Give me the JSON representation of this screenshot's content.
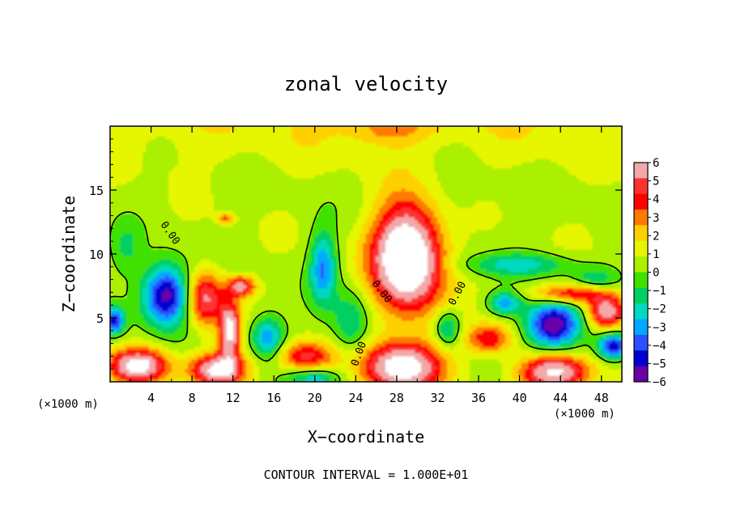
{
  "chart_data": {
    "type": "heatmap",
    "title": "zonal velocity",
    "xlabel": "X−coordinate",
    "ylabel": "Z−coordinate",
    "x_unit_note": "(×1000 m)",
    "z_unit_note": "(×1000 m)",
    "footer": "CONTOUR INTERVAL = 1.000E+01",
    "xlim": [
      0,
      50
    ],
    "ylim": [
      0,
      20
    ],
    "x_ticks": [
      4,
      8,
      12,
      16,
      20,
      24,
      28,
      32,
      36,
      40,
      44,
      48
    ],
    "x_tick_labels": [
      "4",
      "8",
      "12",
      "16",
      "20",
      "24",
      "28",
      "32",
      "36",
      "40",
      "44",
      "48"
    ],
    "y_ticks": [
      5,
      10,
      15
    ],
    "y_tick_labels": [
      "5",
      "10",
      "15"
    ],
    "colorbar": {
      "range": [
        -6,
        6
      ],
      "tick_labels": [
        "6",
        "5",
        "4",
        "3",
        "2",
        "1",
        "0",
        "−1",
        "−2",
        "−3",
        "−4",
        "−5",
        "−6"
      ],
      "colors": [
        "#f2a8a8",
        "#ff3030",
        "#ff0000",
        "#ff7a00",
        "#ffd000",
        "#e6f500",
        "#aaf000",
        "#40e000",
        "#00d060",
        "#00d8c0",
        "#00a8ff",
        "#2a50ff",
        "#0000d0",
        "#6a00a8"
      ]
    },
    "contour_labels": [
      "0.00",
      "0.00",
      "0.00",
      "0.00"
    ],
    "blobs": [
      {
        "x": 5.5,
        "z": 6.8,
        "rx": 2.3,
        "rz": 2.4,
        "v": -6.5
      },
      {
        "x": 0.4,
        "z": 4.8,
        "rx": 1.0,
        "rz": 1.0,
        "v": -5
      },
      {
        "x": 2.7,
        "z": 1.3,
        "rx": 2.8,
        "rz": 1.3,
        "v": 6.5
      },
      {
        "x": 9.3,
        "z": 6.5,
        "rx": 1.8,
        "rz": 2.2,
        "v": 5
      },
      {
        "x": 11.7,
        "z": 4.0,
        "rx": 1.0,
        "rz": 2.2,
        "v": 6.2
      },
      {
        "x": 12.8,
        "z": 7.5,
        "rx": 1.3,
        "rz": 0.8,
        "v": 5
      },
      {
        "x": 11.3,
        "z": 12.8,
        "rx": 0.8,
        "rz": 0.4,
        "v": 3
      },
      {
        "x": 10.5,
        "z": 1.0,
        "rx": 2.7,
        "rz": 1.3,
        "v": 6.5
      },
      {
        "x": 15.4,
        "z": 3.5,
        "rx": 1.6,
        "rz": 1.7,
        "v": -4
      },
      {
        "x": 20.8,
        "z": 9.0,
        "rx": 1.3,
        "rz": 2.8,
        "v": -4
      },
      {
        "x": 19.0,
        "z": 2.0,
        "rx": 2.8,
        "rz": 1.2,
        "v": 4
      },
      {
        "x": 23.5,
        "z": 4.6,
        "rx": 1.8,
        "rz": 2.6,
        "v": -2.5
      },
      {
        "x": 20.0,
        "z": 0.3,
        "rx": 2.5,
        "rz": 0.8,
        "v": -3
      },
      {
        "x": 29.0,
        "z": 9.8,
        "rx": 3.3,
        "rz": 4.2,
        "v": 9
      },
      {
        "x": 28.5,
        "z": 1.2,
        "rx": 3.8,
        "rz": 1.9,
        "v": 7
      },
      {
        "x": 33.0,
        "z": 4.2,
        "rx": 1.2,
        "rz": 1.4,
        "v": -3
      },
      {
        "x": 37.0,
        "z": 3.4,
        "rx": 2.3,
        "rz": 1.2,
        "v": 4
      },
      {
        "x": 38.6,
        "z": 6.2,
        "rx": 1.6,
        "rz": 0.9,
        "v": -3.5
      },
      {
        "x": 43.3,
        "z": 4.5,
        "rx": 2.6,
        "rz": 1.9,
        "v": -7
      },
      {
        "x": 40.0,
        "z": 9.2,
        "rx": 5.5,
        "rz": 0.9,
        "v": -2.5
      },
      {
        "x": 45.0,
        "z": 6.9,
        "rx": 3.8,
        "rz": 0.8,
        "v": 4.5
      },
      {
        "x": 48.5,
        "z": 5.5,
        "rx": 1.8,
        "rz": 1.3,
        "v": 6
      },
      {
        "x": 49.2,
        "z": 2.8,
        "rx": 1.5,
        "rz": 1.0,
        "v": -6
      },
      {
        "x": 43.5,
        "z": 0.8,
        "rx": 3.3,
        "rz": 1.4,
        "v": 6.5
      },
      {
        "x": 47.5,
        "z": 8.0,
        "rx": 2.3,
        "rz": 1.0,
        "v": -2
      },
      {
        "x": 31.0,
        "z": 14.0,
        "rx": 6.0,
        "rz": 3.0,
        "v": -0.4
      },
      {
        "x": 27.0,
        "z": 19.8,
        "rx": 4.0,
        "rz": 1.2,
        "v": 1.8
      },
      {
        "x": 1.5,
        "z": 10.5,
        "rx": 1.5,
        "rz": 2.0,
        "v": -1.5
      }
    ]
  }
}
